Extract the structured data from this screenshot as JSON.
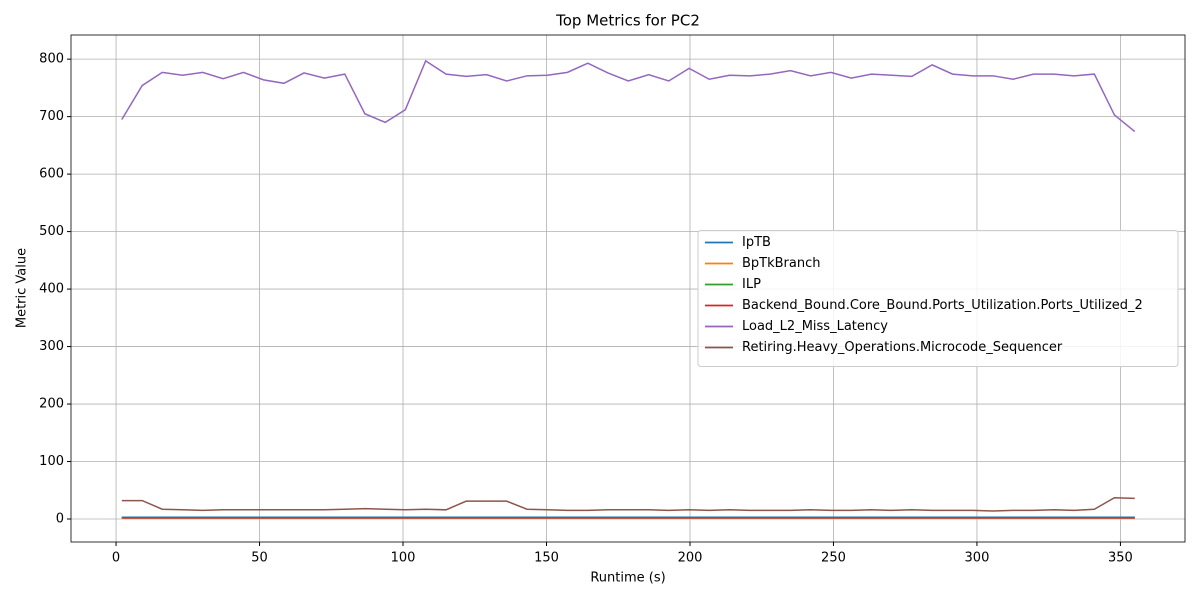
{
  "chart_data": {
    "type": "line",
    "title": "Top Metrics for PC2",
    "xlabel": "Runtime (s)",
    "ylabel": "Metric Value",
    "x": [
      2,
      9.1,
      16.1,
      23.2,
      30.2,
      37.3,
      44.4,
      51.4,
      58.5,
      65.5,
      72.6,
      79.7,
      86.7,
      93.8,
      100.8,
      107.9,
      115,
      122,
      129.1,
      136.1,
      143.2,
      150.3,
      157.3,
      164.4,
      171.4,
      178.5,
      185.6,
      192.6,
      199.7,
      206.7,
      213.8,
      220.9,
      227.9,
      235,
      242,
      249.1,
      256.2,
      263.2,
      270.3,
      277.3,
      284.4,
      291.5,
      298.5,
      305.6,
      312.6,
      319.7,
      326.8,
      333.8,
      340.9,
      347.9,
      355
    ],
    "series": [
      {
        "name": "IpTB",
        "color": "#1f77b4",
        "values": [
          3,
          3,
          3,
          3,
          3,
          3,
          3,
          3,
          3,
          3,
          3,
          3,
          3,
          3,
          3,
          3,
          3,
          3,
          3,
          3,
          3,
          3,
          3,
          3,
          3,
          3,
          3,
          3,
          3,
          3,
          3,
          3,
          3,
          3,
          3,
          3,
          3,
          3,
          3,
          3,
          3,
          3,
          3,
          3,
          3,
          3,
          3,
          3,
          3,
          3,
          3
        ]
      },
      {
        "name": "BpTkBranch",
        "color": "#ff7f0e",
        "values": [
          2,
          2,
          2,
          2,
          2,
          2,
          2,
          2,
          2,
          2,
          2,
          2,
          2,
          2,
          2,
          2,
          2,
          2,
          2,
          2,
          2,
          2,
          2,
          2,
          2,
          2,
          2,
          2,
          2,
          2,
          2,
          2,
          2,
          2,
          2,
          2,
          2,
          2,
          2,
          2,
          2,
          2,
          2,
          2,
          2,
          2,
          2,
          2,
          2,
          2,
          2
        ]
      },
      {
        "name": "ILP",
        "color": "#2ca02c",
        "values": [
          2,
          2,
          2,
          2,
          2,
          2,
          2,
          2,
          2,
          2,
          2,
          2,
          2,
          2,
          2,
          2,
          2,
          2,
          2,
          2,
          2,
          2,
          2,
          2,
          2,
          2,
          2,
          2,
          2,
          2,
          2,
          2,
          2,
          2,
          2,
          2,
          2,
          2,
          2,
          2,
          2,
          2,
          2,
          2,
          2,
          2,
          2,
          2,
          2,
          2,
          2
        ]
      },
      {
        "name": "Backend_Bound.Core_Bound.Ports_Utilization.Ports_Utilized_2",
        "color": "#d62728",
        "values": [
          2,
          2,
          2,
          2,
          2,
          2,
          2,
          2,
          2,
          2,
          2,
          2,
          2,
          2,
          2,
          2,
          2,
          2,
          2,
          2,
          2,
          2,
          2,
          2,
          2,
          2,
          2,
          2,
          2,
          2,
          2,
          2,
          2,
          2,
          2,
          2,
          2,
          2,
          2,
          2,
          2,
          2,
          2,
          2,
          2,
          2,
          2,
          2,
          2,
          2,
          2
        ]
      },
      {
        "name": "Load_L2_Miss_Latency",
        "color": "#9467bd",
        "values": [
          695,
          754,
          777,
          772,
          777,
          766,
          777,
          764,
          758,
          776,
          767,
          774,
          705,
          690,
          712,
          797,
          774,
          770,
          773,
          762,
          771,
          772,
          777,
          793,
          776,
          762,
          773,
          762,
          784,
          765,
          772,
          771,
          774,
          780,
          771,
          777,
          767,
          774,
          772,
          770,
          790,
          774,
          771,
          771,
          765,
          774,
          774,
          771,
          774,
          703,
          674
        ]
      },
      {
        "name": "Retiring.Heavy_Operations.Microcode_Sequencer",
        "color": "#8c564b",
        "values": [
          32,
          32,
          17,
          16,
          15,
          16,
          16,
          16,
          16,
          16,
          16,
          17,
          18,
          17,
          16,
          17,
          16,
          31,
          31,
          31,
          17,
          16,
          15,
          15,
          16,
          16,
          16,
          15,
          16,
          15,
          16,
          15,
          15,
          15,
          16,
          15,
          15,
          16,
          15,
          16,
          15,
          15,
          15,
          14,
          15,
          15,
          16,
          15,
          17,
          37,
          36
        ]
      }
    ],
    "xlim": [
      -15.7,
      372.5
    ],
    "ylim": [
      -40,
      842
    ],
    "xticks": [
      0,
      50,
      100,
      150,
      200,
      250,
      300,
      350
    ],
    "yticks": [
      0,
      100,
      200,
      300,
      400,
      500,
      600,
      700,
      800
    ],
    "grid": true,
    "legend": "center right"
  }
}
